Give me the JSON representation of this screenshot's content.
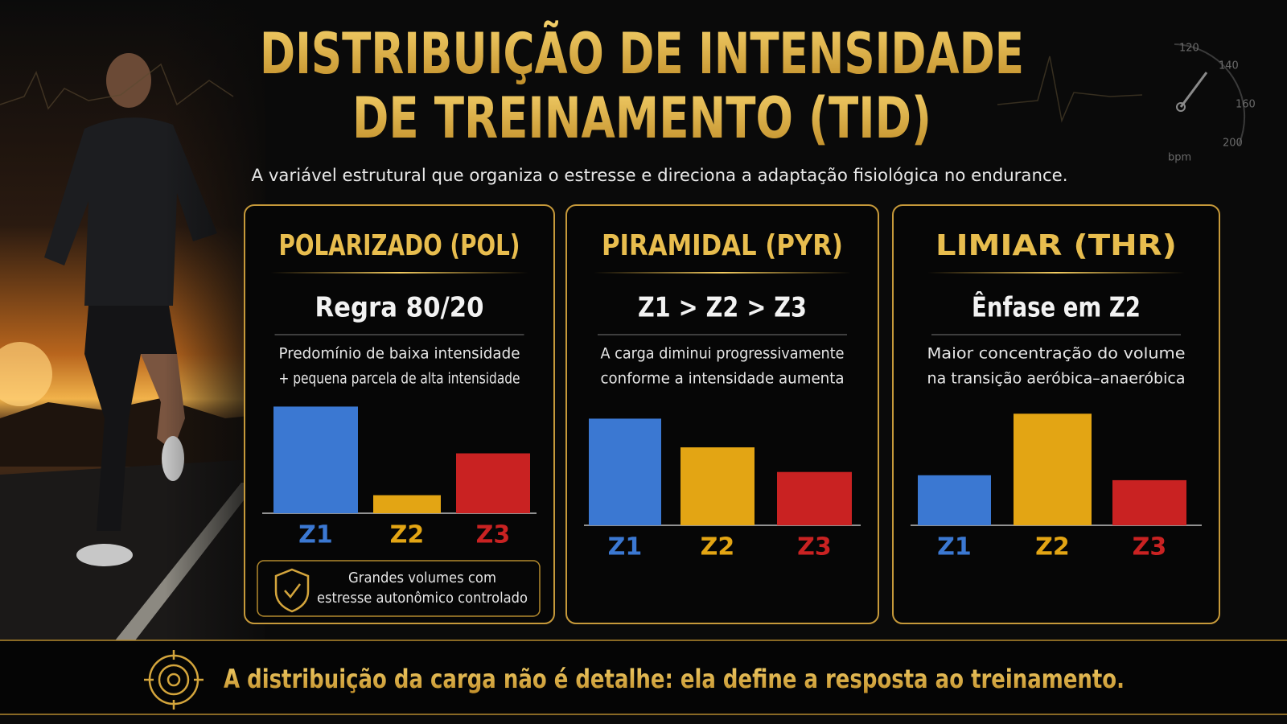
{
  "title": [
    "DISTRIBUIÇÃO DE INTENSIDADE",
    "DE TREINAMENTO (TID)"
  ],
  "subtitle": "A variável estrutural que organiza o estresse e direciona a adaptação fisiológica no endurance.",
  "gauge": {
    "ticks": [
      "120",
      "140",
      "160",
      "200"
    ],
    "unit": "bpm"
  },
  "chart_data": [
    {
      "type": "bar",
      "title": "POLARIZADO (POL)",
      "subtitle": "Regra 80/20",
      "description": [
        "Predomínio de baixa intensidade",
        "+ pequena parcela de alta intensidade"
      ],
      "categories": [
        "Z1",
        "Z2",
        "Z3"
      ],
      "values": [
        130,
        22,
        73
      ],
      "colors": [
        "#3b78d2",
        "#e3a514",
        "#c92222"
      ],
      "note": [
        "Grandes volumes com",
        "estresse autonômico controlado"
      ]
    },
    {
      "type": "bar",
      "title": "PIRAMIDAL (PYR)",
      "subtitle": "Z1 > Z2 > Z3",
      "description": [
        "A carga diminui progressivamente",
        "conforme a intensidade aumenta"
      ],
      "categories": [
        "Z1",
        "Z2",
        "Z3"
      ],
      "values": [
        130,
        95,
        65
      ],
      "colors": [
        "#3b78d2",
        "#e3a514",
        "#c92222"
      ]
    },
    {
      "type": "bar",
      "title": "LIMIAR (THR)",
      "subtitle": "Ênfase em Z2",
      "description": [
        "Maior concentração do volume",
        "na transição aeróbica–anaeróbica"
      ],
      "categories": [
        "Z1",
        "Z2",
        "Z3"
      ],
      "values": [
        61,
        136,
        55
      ],
      "colors": [
        "#3b78d2",
        "#e3a514",
        "#c92222"
      ]
    }
  ],
  "footer": "A distribuição da carga não é detalhe: ela define a resposta ao treinamento."
}
